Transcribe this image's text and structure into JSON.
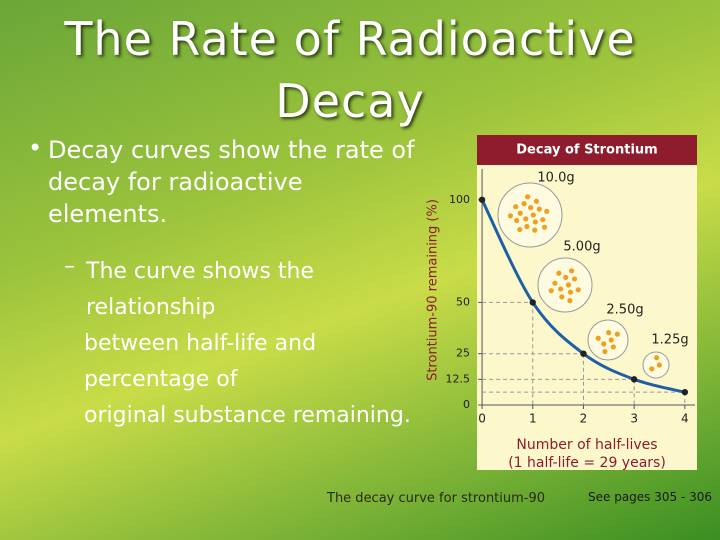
{
  "title": "The Rate of Radioactive Decay",
  "bullet": "Decay curves show the rate of decay for radioactive elements.",
  "sub_bullet_lines": [
    "The curve shows the relationship",
    "between half-life and percentage of",
    "original substance remaining."
  ],
  "caption": "The decay curve for strontium-90",
  "reference": "See pages 305 - 306",
  "chart_data": {
    "type": "line",
    "title": "Decay of Strontium",
    "ylabel": "Strontium-90 remaining (%)",
    "xlabel": [
      "Number of half-lives",
      "(1 half-life = 29 years)"
    ],
    "x": [
      0,
      1,
      2,
      3,
      4
    ],
    "series": [
      {
        "color": "#1f5fa8",
        "values": [
          100,
          50,
          25,
          12.5,
          6.25
        ]
      }
    ],
    "xlim": [
      -0.1,
      4.2
    ],
    "xticks": [
      0,
      1,
      2,
      3,
      4
    ],
    "ylim": [
      0,
      115
    ],
    "yticks": [
      0,
      12.5,
      25,
      50,
      100
    ],
    "annotations": [
      "10.0g",
      "5.00g",
      "2.50g",
      "1.25g"
    ]
  }
}
